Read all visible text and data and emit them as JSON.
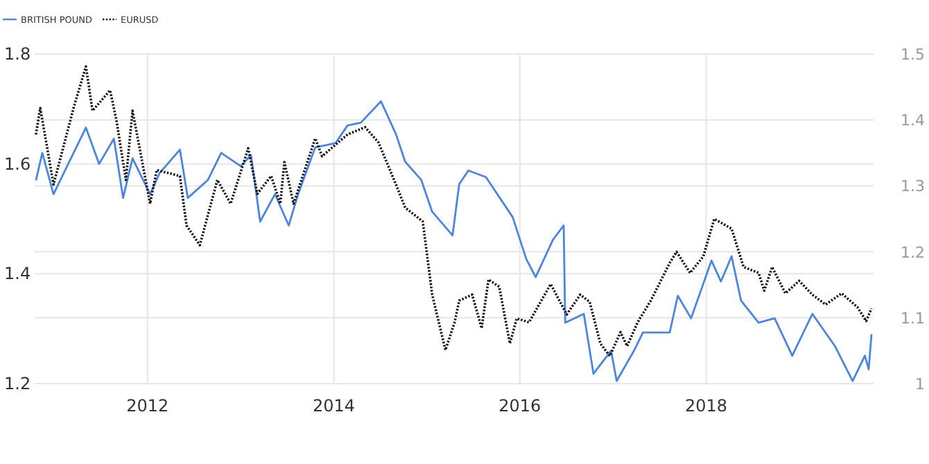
{
  "chart_data": {
    "type": "line",
    "xlim": [
      "2010-10-15",
      "2019-10-20"
    ],
    "xticks": [
      {
        "value": "2012-01-01",
        "label": "2012"
      },
      {
        "value": "2014-01-01",
        "label": "2014"
      },
      {
        "value": "2016-01-01",
        "label": "2016"
      },
      {
        "value": "2018-01-01",
        "label": "2018"
      }
    ],
    "ylim": [
      1.2,
      1.8
    ],
    "yticks": [
      1.2,
      1.4,
      1.6,
      1.8
    ],
    "y2lim": [
      1,
      1.5
    ],
    "y2ticks": [
      1,
      1.1,
      1.2,
      1.3,
      1.4,
      1.5
    ],
    "grid": true,
    "legend": "top left",
    "series": [
      {
        "name": "BRITISH POUND",
        "color": "#4a86e0",
        "line_style": "solid",
        "x": [
          "2010-10-20",
          "2010-11-14",
          "2010-12-28",
          "2011-05-04",
          "2011-06-25",
          "2011-08-22",
          "2011-09-27",
          "2011-11-03",
          "2012-01-11",
          "2012-02-17",
          "2012-05-07",
          "2012-06-07",
          "2012-08-25",
          "2012-10-16",
          "2013-01-01",
          "2013-02-10",
          "2013-03-18",
          "2013-05-15",
          "2013-07-08",
          "2013-08-14",
          "2013-10-20",
          "2014-01-08",
          "2014-02-24",
          "2014-04-17",
          "2014-07-05",
          "2014-09-02",
          "2014-10-08",
          "2014-12-10",
          "2015-01-22",
          "2015-04-12",
          "2015-05-08",
          "2015-06-13",
          "2015-08-21",
          "2015-12-04",
          "2016-01-26",
          "2016-03-03",
          "2016-05-10",
          "2016-06-21",
          "2016-06-27",
          "2016-09-08",
          "2016-10-16",
          "2016-12-24",
          "2017-01-15",
          "2017-03-24",
          "2017-04-28",
          "2017-08-11",
          "2017-09-12",
          "2017-11-03",
          "2018-01-22",
          "2018-02-28",
          "2018-04-11",
          "2018-05-18",
          "2018-07-26",
          "2018-09-27",
          "2018-12-05",
          "2019-02-22",
          "2019-05-22",
          "2019-07-30",
          "2019-09-16",
          "2019-10-01",
          "2019-10-12"
        ],
        "values": [
          1.57,
          1.62,
          1.545,
          1.666,
          1.6,
          1.646,
          1.538,
          1.61,
          1.545,
          1.583,
          1.626,
          1.538,
          1.571,
          1.62,
          1.596,
          1.616,
          1.495,
          1.545,
          1.488,
          1.545,
          1.63,
          1.638,
          1.67,
          1.675,
          1.714,
          1.654,
          1.604,
          1.571,
          1.513,
          1.47,
          1.563,
          1.588,
          1.576,
          1.503,
          1.427,
          1.394,
          1.462,
          1.488,
          1.311,
          1.327,
          1.218,
          1.26,
          1.205,
          1.26,
          1.293,
          1.293,
          1.36,
          1.319,
          1.424,
          1.386,
          1.432,
          1.351,
          1.311,
          1.319,
          1.251,
          1.327,
          1.268,
          1.205,
          1.251,
          1.226,
          1.29
        ]
      },
      {
        "name": "EURUSD",
        "color": "#111111",
        "line_style": "dotted",
        "axis": "y2",
        "x": [
          "2010-10-20",
          "2010-11-06",
          "2010-12-28",
          "2011-03-18",
          "2011-05-04",
          "2011-05-30",
          "2011-08-07",
          "2011-09-02",
          "2011-10-08",
          "2011-11-03",
          "2012-01-11",
          "2012-02-06",
          "2012-05-07",
          "2012-06-02",
          "2012-07-24",
          "2012-10-01",
          "2012-11-22",
          "2013-01-30",
          "2013-03-07",
          "2013-04-30",
          "2013-06-05",
          "2013-06-21",
          "2013-07-27",
          "2013-10-20",
          "2013-11-16",
          "2014-02-24",
          "2014-05-04",
          "2014-06-25",
          "2014-09-02",
          "2014-10-08",
          "2014-12-16",
          "2015-01-22",
          "2015-03-15",
          "2015-04-20",
          "2015-05-08",
          "2015-06-28",
          "2015-08-04",
          "2015-08-31",
          "2015-10-12",
          "2015-11-23",
          "2015-12-20",
          "2016-02-06",
          "2016-05-01",
          "2016-07-03",
          "2016-08-25",
          "2016-10-01",
          "2016-11-12",
          "2016-12-19",
          "2017-01-30",
          "2017-02-25",
          "2017-04-07",
          "2017-05-29",
          "2017-08-11",
          "2017-09-07",
          "2017-10-30",
          "2017-12-21",
          "2018-02-02",
          "2018-04-11",
          "2018-05-28",
          "2018-07-26",
          "2018-08-17",
          "2018-09-17",
          "2018-11-08",
          "2019-01-01",
          "2019-02-22",
          "2019-04-15",
          "2019-06-17",
          "2019-08-18",
          "2019-09-21",
          "2019-10-12"
        ],
        "values": [
          1.378,
          1.418,
          1.302,
          1.42,
          1.481,
          1.414,
          1.445,
          1.397,
          1.309,
          1.414,
          1.273,
          1.324,
          1.315,
          1.24,
          1.21,
          1.309,
          1.273,
          1.357,
          1.288,
          1.315,
          1.273,
          1.336,
          1.273,
          1.372,
          1.345,
          1.378,
          1.389,
          1.366,
          1.302,
          1.267,
          1.246,
          1.135,
          1.051,
          1.093,
          1.126,
          1.135,
          1.084,
          1.158,
          1.147,
          1.061,
          1.099,
          1.093,
          1.151,
          1.105,
          1.135,
          1.124,
          1.061,
          1.042,
          1.078,
          1.057,
          1.093,
          1.126,
          1.183,
          1.2,
          1.168,
          1.193,
          1.25,
          1.235,
          1.177,
          1.168,
          1.141,
          1.177,
          1.137,
          1.156,
          1.135,
          1.12,
          1.137,
          1.116,
          1.095,
          1.114
        ]
      }
    ]
  }
}
